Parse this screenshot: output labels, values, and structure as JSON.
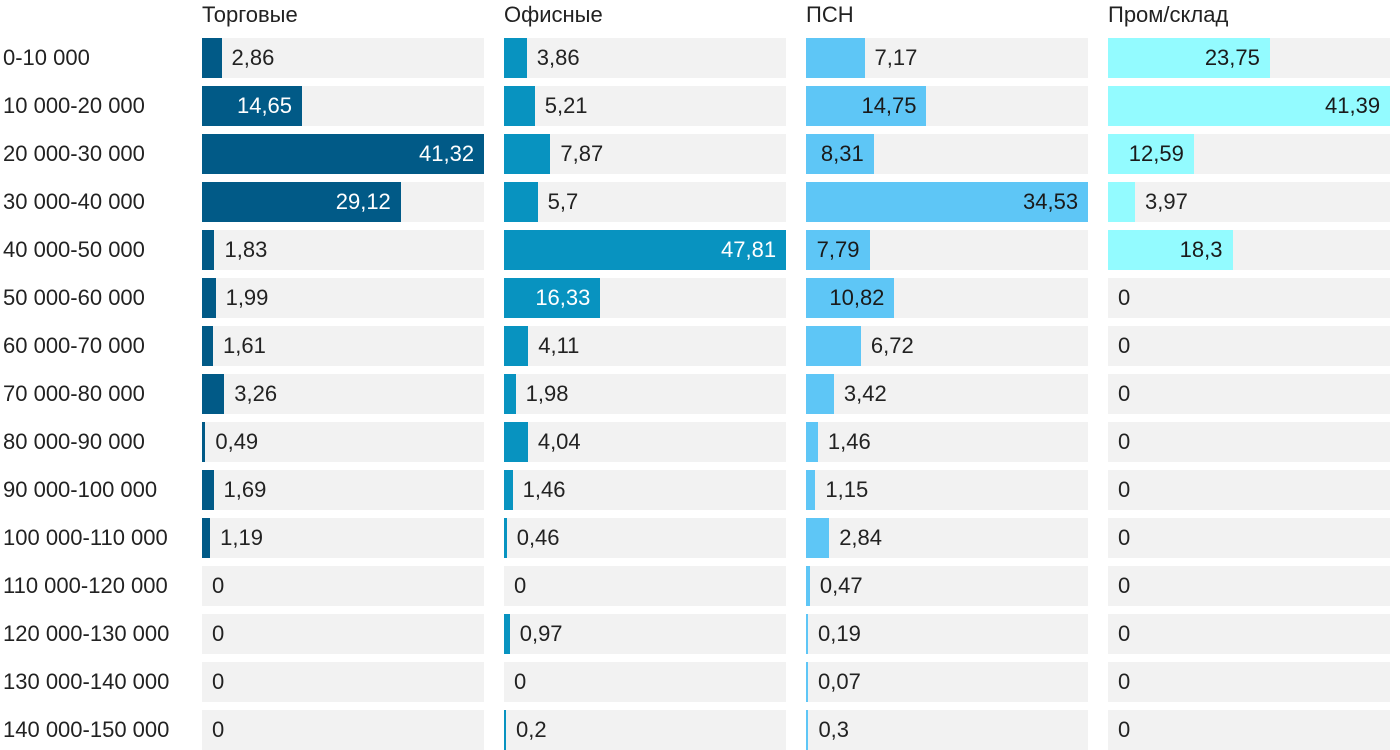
{
  "chart_data": {
    "type": "bar",
    "orientation": "horizontal",
    "layout": "small-multiples",
    "categories": [
      "0-10 000",
      "10 000-20 000",
      "20 000-30 000",
      "30 000-40 000",
      "40 000-50 000",
      "50 000-60 000",
      "60 000-70 000",
      "70 000-80 000",
      "80 000-90 000",
      "90 000-100 000",
      "100 000-110 000",
      "110 000-120 000",
      "120 000-130 000",
      "130 000-140 000",
      "140 000-150 000"
    ],
    "series": [
      {
        "name": "Торговые",
        "color": "#015a87",
        "values": [
          2.86,
          14.65,
          41.32,
          29.12,
          1.83,
          1.99,
          1.61,
          3.26,
          0.49,
          1.69,
          1.19,
          0,
          0,
          0,
          0
        ],
        "labels": [
          "2,86",
          "14,65",
          "41,32",
          "29,12",
          "1,83",
          "1,99",
          "1,61",
          "3,26",
          "0,49",
          "1,69",
          "1,19",
          "0",
          "0",
          "0",
          "0"
        ],
        "max": 41.32
      },
      {
        "name": "Офисные",
        "color": "#0893c0",
        "values": [
          3.86,
          5.21,
          7.87,
          5.7,
          47.81,
          16.33,
          4.11,
          1.98,
          4.04,
          1.46,
          0.46,
          0,
          0.97,
          0,
          0.2
        ],
        "labels": [
          "3,86",
          "5,21",
          "7,87",
          "5,7",
          "47,81",
          "16,33",
          "4,11",
          "1,98",
          "4,04",
          "1,46",
          "0,46",
          "0",
          "0,97",
          "0",
          "0,2"
        ],
        "max": 47.81
      },
      {
        "name": "ПСН",
        "color": "#5ec6f6",
        "values": [
          7.17,
          14.75,
          8.31,
          34.53,
          7.79,
          10.82,
          6.72,
          3.42,
          1.46,
          1.15,
          2.84,
          0.47,
          0.19,
          0.07,
          0.3
        ],
        "labels": [
          "7,17",
          "14,75",
          "8,31",
          "34,53",
          "7,79",
          "10,82",
          "6,72",
          "3,42",
          "1,46",
          "1,15",
          "2,84",
          "0,47",
          "0,19",
          "0,07",
          "0,3"
        ],
        "max": 34.53
      },
      {
        "name": "Пром/склад",
        "color": "#93fbff",
        "values": [
          23.75,
          41.39,
          12.59,
          3.97,
          18.3,
          0,
          0,
          0,
          0,
          0,
          0,
          0,
          0,
          0,
          0
        ],
        "labels": [
          "23,75",
          "41,39",
          "12,59",
          "3,97",
          "18,3",
          "0",
          "0",
          "0",
          "0",
          "0",
          "0",
          "0",
          "0",
          "0",
          "0"
        ],
        "max": 41.39
      }
    ],
    "title": "",
    "xlabel": "",
    "ylabel": ""
  }
}
